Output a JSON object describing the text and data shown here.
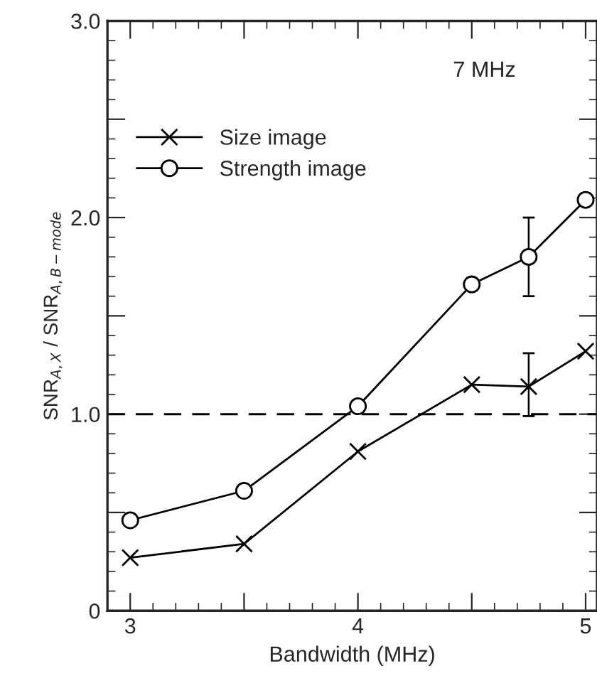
{
  "chart_data": {
    "type": "line",
    "xlabel": "Bandwidth (MHz)",
    "ylabel": "SNR$_{A,X}$ / SNR$_{A,B−mode}$",
    "x": [
      3,
      3.5,
      4,
      4.5,
      4.75,
      5
    ],
    "series": [
      {
        "name": "Size image",
        "color": "#000000",
        "marker": "cross",
        "values": [
          0.27,
          0.34,
          0.81,
          1.15,
          1.14,
          1.32
        ],
        "errors": [
          null,
          null,
          null,
          null,
          [
            0.99,
            1.31
          ],
          null
        ]
      },
      {
        "name": "Strength image",
        "color": "#000000",
        "marker": "circle",
        "values": [
          0.46,
          0.61,
          1.04,
          1.66,
          1.8,
          2.09
        ],
        "errors": [
          null,
          null,
          null,
          null,
          [
            1.6,
            2.0
          ],
          null
        ]
      }
    ],
    "xlim": [
      2.9,
      5.05
    ],
    "ylim": [
      0,
      3.0
    ],
    "xticks": [
      3,
      {
        "value": 3.5,
        "label": null
      },
      4,
      {
        "value": 4.5,
        "label": null
      },
      5
    ],
    "yticks": [
      {
        "value": 0,
        "label": "0"
      },
      {
        "value": 0.5,
        "label": null
      },
      {
        "value": 1.0,
        "label": "1.0"
      },
      {
        "value": 1.5,
        "label": null
      },
      {
        "value": 2.0,
        "label": "2.0"
      },
      {
        "value": 2.5,
        "label": null
      },
      {
        "value": 3.0,
        "label": "3.0"
      }
    ],
    "ref_lines": [
      {
        "axis": "y",
        "value": 1.0,
        "label": null,
        "color": "#000000",
        "line_style": "dashed"
      }
    ],
    "annotations": [
      "7 MHz"
    ],
    "legend": "top left",
    "grid": false,
    "line_style": "solid"
  }
}
